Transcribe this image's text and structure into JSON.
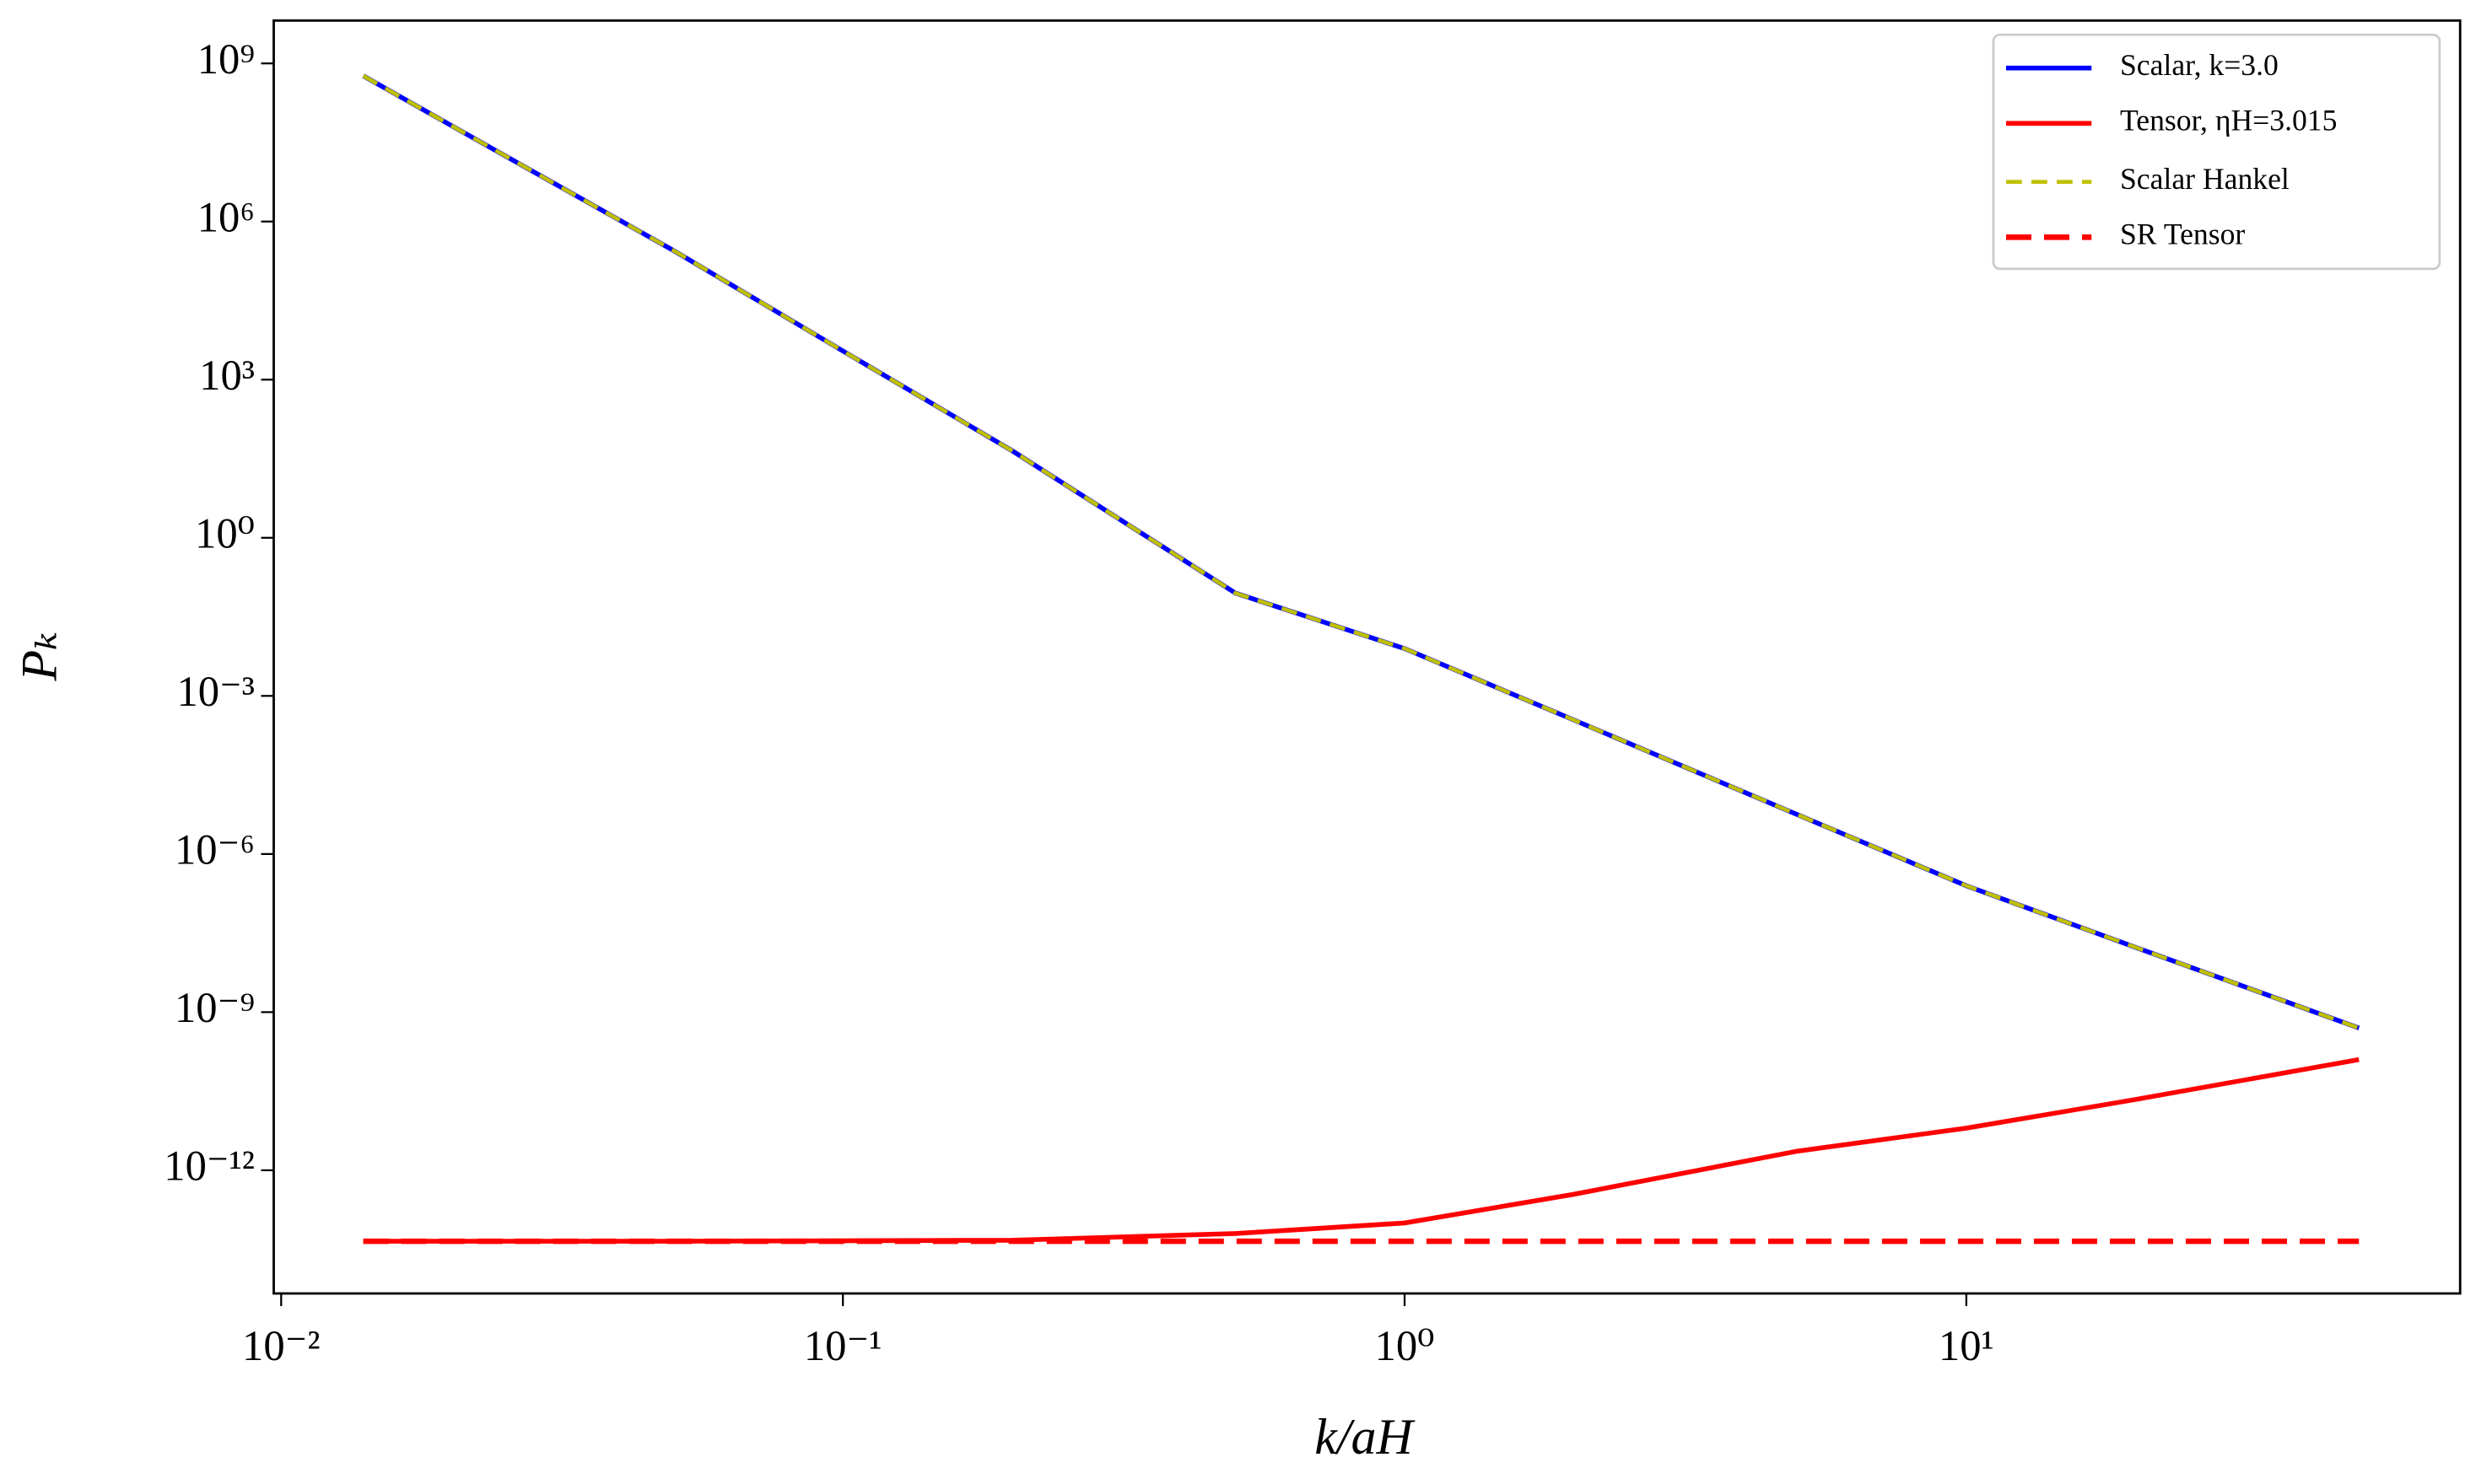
{
  "chart_data": {
    "type": "line",
    "x_label": "k/aH",
    "y_label": "Pₖ",
    "xscale": "log",
    "yscale": "log",
    "xlim": [
      0.0097,
      75.7
    ],
    "ylim": [
      4.6e-15,
      6500000000.0
    ],
    "xticks": [
      {
        "value": 0.01,
        "label": "10⁻²"
      },
      {
        "value": 0.1,
        "label": "10⁻¹"
      },
      {
        "value": 1,
        "label": "10⁰"
      },
      {
        "value": 10,
        "label": "10¹"
      }
    ],
    "yticks": [
      {
        "value": 1000000000.0,
        "label": "10⁹"
      },
      {
        "value": 1000000.0,
        "label": "10⁶"
      },
      {
        "value": 1000.0,
        "label": "10³"
      },
      {
        "value": 1,
        "label": "10⁰"
      },
      {
        "value": 0.001,
        "label": "10⁻³"
      },
      {
        "value": 1e-06,
        "label": "10⁻⁶"
      },
      {
        "value": 1e-09,
        "label": "10⁻⁹"
      },
      {
        "value": 1e-12,
        "label": "10⁻¹²"
      }
    ],
    "legend": "upper right",
    "x": [
      0.014,
      0.02,
      0.05,
      0.1,
      0.2,
      0.5,
      1,
      2,
      5,
      10,
      20,
      50
    ],
    "series": [
      {
        "name": "Scalar, k=3.0",
        "color": "#0000ff",
        "style": "solid",
        "values": [
          580000000.0,
          68000000.0,
          280000.0,
          3500,
          45,
          0.089,
          0.0079,
          0.00035,
          5.6e-06,
          2.5e-07,
          1.7e-08,
          5e-10
        ]
      },
      {
        "name": "Tensor, ηH=3.015",
        "color": "#ff0000",
        "style": "solid",
        "values": [
          4.5e-14,
          4.5e-14,
          4.5e-14,
          4.6e-14,
          4.7e-14,
          6.3e-14,
          1e-13,
          3.5e-13,
          2.3e-12,
          6.3e-12,
          2.2e-11,
          1.26e-10
        ]
      },
      {
        "name": "Scalar Hankel",
        "color": "#bfbf00",
        "style": "dashed",
        "values": [
          580000000.0,
          68000000.0,
          280000.0,
          3500,
          45,
          0.089,
          0.0079,
          0.00035,
          5.6e-06,
          2.5e-07,
          1.7e-08,
          5e-10
        ]
      },
      {
        "name": "SR Tensor",
        "color": "#ff0000",
        "style": "bold-dashed",
        "values": [
          4.5e-14,
          4.5e-14,
          4.5e-14,
          4.5e-14,
          4.5e-14,
          4.5e-14,
          4.5e-14,
          4.5e-14,
          4.5e-14,
          4.5e-14,
          4.5e-14,
          4.5e-14
        ]
      }
    ]
  }
}
